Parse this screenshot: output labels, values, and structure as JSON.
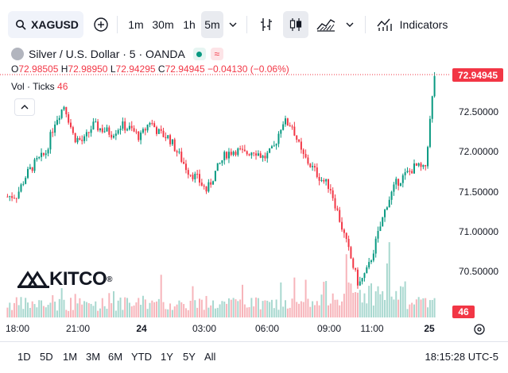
{
  "symbol_search": {
    "value": "XAGUSD"
  },
  "intervals": [
    "1m",
    "30m",
    "1h",
    "5m"
  ],
  "selected_interval": "5m",
  "indicators_label": "Indicators",
  "legend": {
    "title": "Silver / U.S. Dollar · 5 · OANDA",
    "open_label": "O",
    "open": "72.98505",
    "high_label": "H",
    "high": "72.98950",
    "low_label": "L",
    "low": "72.94295",
    "close_label": "C",
    "close": "72.94945",
    "change": "−0.04130 (−0.06%)"
  },
  "volume_legend": {
    "label": "Vol · Ticks",
    "value": "46"
  },
  "price_axis": {
    "ticks": [
      "72.94945",
      "72.50000",
      "72.00000",
      "71.50000",
      "71.00000",
      "70.50000"
    ],
    "last_price": "72.94945",
    "last_volume": "46"
  },
  "time_axis": {
    "ticks": [
      "18:00",
      "21:00",
      "24",
      "03:00",
      "06:00",
      "09:00",
      "11:00",
      "25"
    ]
  },
  "watermark": {
    "text": "KITCO",
    "mark": "®"
  },
  "ranges": [
    "1D",
    "5D",
    "1M",
    "3M",
    "6M",
    "YTD",
    "1Y",
    "5Y",
    "All"
  ],
  "clock": "18:15:28 UTC-5",
  "colors": {
    "up": "#089981",
    "down": "#f23645",
    "up_vol": "#a8d8cf",
    "down_vol": "#f7b4ba",
    "dot": "#089981"
  },
  "chart_data": {
    "type": "candlestick",
    "ylim": [
      70.2,
      73.2
    ],
    "x_range": [
      "18:00",
      "25 00:05"
    ],
    "close_series_approx": [
      71.48,
      71.5,
      71.75,
      71.9,
      72.0,
      72.4,
      72.6,
      72.2,
      72.15,
      72.35,
      72.3,
      72.25,
      72.35,
      72.3,
      72.2,
      72.4,
      72.25,
      72.2,
      72.0,
      71.8,
      71.7,
      71.55,
      71.8,
      72.0,
      72.05,
      72.0,
      72.05,
      71.95,
      72.05,
      72.4,
      72.35,
      72.0,
      71.85,
      71.7,
      71.6,
      71.2,
      70.8,
      70.4,
      70.6,
      71.0,
      71.4,
      71.65,
      71.75,
      71.85,
      71.8,
      72.95
    ]
  }
}
